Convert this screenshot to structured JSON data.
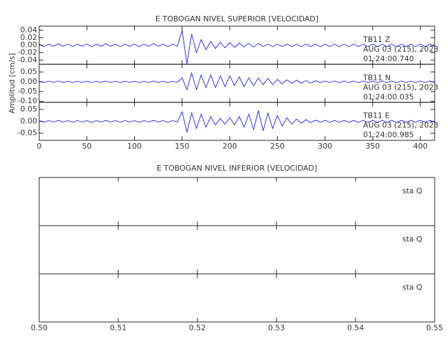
{
  "chart_data": [
    {
      "type": "seismogram",
      "title": "E TOBOGAN NIVEL SUPERIOR [VELOCIDAD]",
      "y_label": "Amplitud [cm/s]",
      "xlim": [
        0,
        415
      ],
      "xticks": [
        0,
        50,
        100,
        150,
        200,
        250,
        300,
        350,
        400
      ],
      "x": [
        0,
        5,
        10,
        15,
        20,
        25,
        30,
        35,
        40,
        45,
        50,
        55,
        60,
        65,
        70,
        75,
        80,
        85,
        90,
        95,
        100,
        105,
        110,
        115,
        120,
        125,
        130,
        135,
        140,
        145,
        150,
        155,
        160,
        165,
        170,
        175,
        180,
        185,
        190,
        195,
        200,
        205,
        210,
        215,
        220,
        225,
        230,
        235,
        240,
        245,
        250,
        255,
        260,
        265,
        270,
        275,
        280,
        285,
        290,
        295,
        300,
        305,
        310,
        315,
        320,
        325,
        330,
        335,
        340,
        345,
        350,
        355,
        360,
        365,
        370,
        375,
        380,
        385,
        390,
        395,
        400,
        405,
        410,
        415
      ],
      "series": [
        {
          "name": "TB11   Z",
          "date": "AUG 03 (215), 2023",
          "time": "01:24:00.740",
          "color": "#0000ff",
          "ylim": [
            -0.051,
            0.051
          ],
          "yticks": [
            -0.04,
            -0.02,
            {
              "value": 0,
              "label": "0.00"
            },
            0.02,
            0.04
          ],
          "values": [
            0.003,
            -0.004,
            0.003,
            -0.003,
            0.004,
            -0.003,
            0.003,
            -0.004,
            0.003,
            -0.003,
            0.003,
            -0.004,
            0.003,
            -0.003,
            0.004,
            -0.003,
            0.003,
            -0.004,
            0.003,
            -0.003,
            0.003,
            -0.004,
            0.003,
            -0.003,
            0.004,
            -0.003,
            0.003,
            -0.004,
            0.003,
            -0.003,
            0.04,
            -0.05,
            0.03,
            -0.02,
            0.015,
            -0.012,
            0.01,
            -0.009,
            0.008,
            -0.007,
            0.007,
            -0.006,
            0.006,
            -0.005,
            0.005,
            -0.005,
            0.005,
            -0.004,
            0.003,
            -0.004,
            0.003,
            -0.004,
            0.003,
            -0.004,
            0.003,
            -0.004,
            0.003,
            -0.004,
            0.003,
            -0.004,
            0.003,
            -0.004,
            0.003,
            -0.004,
            0.003,
            -0.004,
            0.003,
            -0.004,
            0.003,
            -0.004,
            0.003,
            -0.004,
            0.003,
            -0.004,
            0.003,
            -0.004,
            0.003,
            -0.004,
            0.003,
            -0.004,
            0.003,
            -0.004,
            0.003,
            -0.004
          ]
        },
        {
          "name": "TB11   N",
          "date": "AUG 03 (215), 2023",
          "time": "01:24:00.035",
          "color": "#0000ff",
          "ylim": [
            -0.105,
            0.09
          ],
          "yticks": [
            {
              "value": -0.1,
              "label": "-0.10"
            },
            -0.05,
            {
              "value": 0,
              "label": "0.00"
            },
            0.05
          ],
          "values": [
            0.003,
            -0.004,
            0.003,
            -0.003,
            0.004,
            -0.003,
            0.003,
            -0.004,
            0.003,
            -0.003,
            0.003,
            -0.004,
            0.003,
            -0.003,
            0.004,
            -0.003,
            0.003,
            -0.004,
            0.003,
            -0.003,
            0.003,
            -0.004,
            0.003,
            -0.003,
            0.004,
            -0.003,
            0.003,
            -0.004,
            0.003,
            -0.003,
            0.02,
            -0.04,
            0.045,
            -0.04,
            0.035,
            -0.03,
            0.035,
            -0.03,
            0.03,
            -0.025,
            0.03,
            -0.02,
            0.025,
            -0.025,
            0.02,
            -0.02,
            0.02,
            -0.015,
            0.018,
            -0.015,
            0.012,
            -0.01,
            0.01,
            -0.008,
            0.008,
            -0.007,
            0.006,
            -0.006,
            0.005,
            -0.004,
            0.004,
            -0.004,
            0.004,
            -0.004,
            0.004,
            -0.004,
            0.004,
            -0.004,
            0.004,
            -0.004,
            0.004,
            -0.004,
            0.004,
            -0.004,
            0.004,
            -0.004,
            0.004,
            -0.004,
            0.004,
            -0.004,
            0.004,
            -0.004,
            0.004,
            -0.004
          ]
        },
        {
          "name": "TB11   E",
          "date": "AUG 03 (215), 2023",
          "time": "01:24:00.985",
          "color": "#0000ff",
          "ylim": [
            -0.08,
            0.08
          ],
          "yticks": [
            -0.05,
            {
              "value": 0,
              "label": "0.00"
            },
            0.05
          ],
          "values": [
            0.003,
            -0.004,
            0.003,
            -0.003,
            0.004,
            -0.003,
            0.003,
            -0.004,
            0.003,
            -0.003,
            0.003,
            -0.004,
            0.003,
            -0.003,
            0.004,
            -0.003,
            0.003,
            -0.004,
            0.003,
            -0.003,
            0.003,
            -0.004,
            0.003,
            -0.003,
            0.004,
            -0.003,
            0.003,
            -0.004,
            0.003,
            -0.003,
            0.04,
            -0.045,
            0.035,
            -0.03,
            0.03,
            -0.025,
            0.02,
            -0.015,
            0.012,
            -0.012,
            0.015,
            -0.015,
            0.02,
            -0.025,
            0.03,
            -0.035,
            0.045,
            -0.04,
            0.035,
            -0.03,
            0.025,
            -0.02,
            0.015,
            -0.012,
            0.01,
            -0.008,
            0.007,
            -0.006,
            0.005,
            -0.004,
            0.004,
            -0.004,
            0.004,
            -0.004,
            0.004,
            -0.004,
            0.004,
            -0.004,
            0.004,
            -0.004,
            0.004,
            -0.004,
            0.004,
            -0.004,
            0.004,
            -0.004,
            0.004,
            -0.004,
            0.004,
            -0.004,
            0.004,
            -0.004,
            0.004,
            -0.004
          ]
        }
      ]
    },
    {
      "type": "seismogram",
      "title": "E TOBOGAN NIVEL INFERIOR [VELOCIDAD]",
      "xlim": [
        0.5,
        0.55
      ],
      "xticks": [
        {
          "value": 0.5,
          "label": "0.50"
        },
        0.51,
        0.52,
        0.53,
        0.54,
        0.55
      ],
      "series": [
        {
          "name": "sta   Q"
        },
        {
          "name": "sta   Q"
        },
        {
          "name": "sta   Q"
        }
      ]
    }
  ]
}
